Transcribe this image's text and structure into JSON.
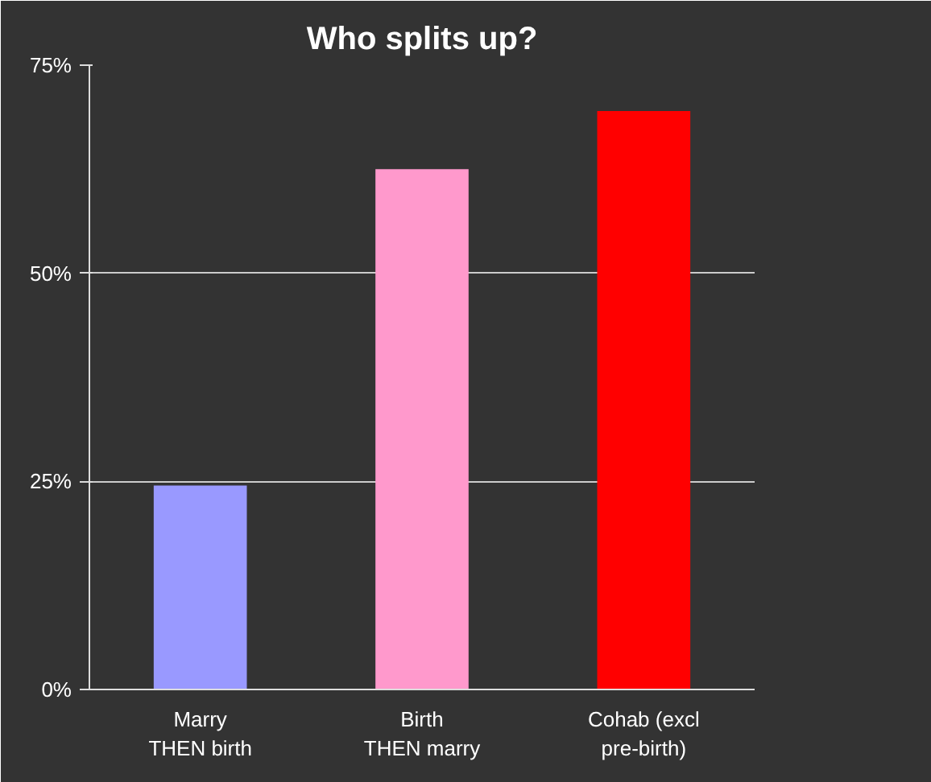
{
  "chart_data": {
    "type": "bar",
    "title": "Who splits up?",
    "categories": [
      "Marry THEN birth",
      "Birth THEN marry",
      "Cohab (excl pre-birth)"
    ],
    "values": [
      24.5,
      62.5,
      69.5
    ],
    "colors": [
      "#9999ff",
      "#ff99cc",
      "#ff0000"
    ],
    "ylim": [
      0,
      75
    ],
    "yticks": [
      {
        "value": 0,
        "label": "0%"
      },
      {
        "value": 25,
        "label": "25%"
      },
      {
        "value": 50,
        "label": "50%"
      },
      {
        "value": 75,
        "label": "75%"
      }
    ],
    "grid": "y"
  }
}
